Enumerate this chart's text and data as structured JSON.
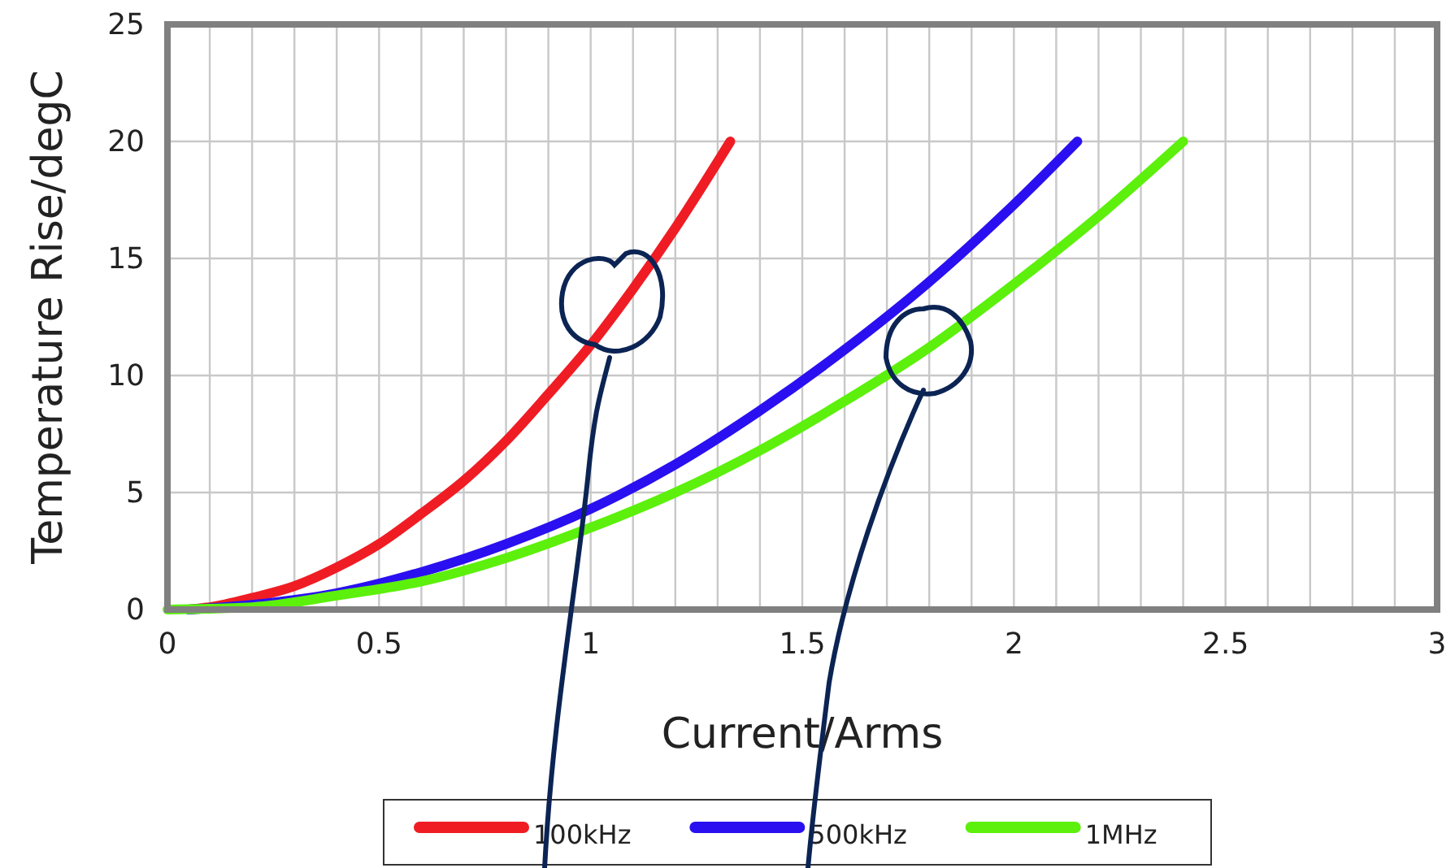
{
  "chart_data": {
    "type": "line",
    "xlabel": "Current/Arms",
    "ylabel": "Temperature Rise/degC",
    "xlim": [
      0,
      3
    ],
    "ylim": [
      0,
      25
    ],
    "xticks": [
      0,
      {
        "value": 0.1,
        "label": null
      },
      {
        "value": 0.2,
        "label": null
      },
      {
        "value": 0.3,
        "label": null
      },
      {
        "value": 0.4,
        "label": null
      },
      0.5,
      {
        "value": 0.6,
        "label": null
      },
      {
        "value": 0.7,
        "label": null
      },
      {
        "value": 0.8,
        "label": null
      },
      {
        "value": 0.9,
        "label": null
      },
      1,
      {
        "value": 1.1,
        "label": null
      },
      {
        "value": 1.2,
        "label": null
      },
      {
        "value": 1.3,
        "label": null
      },
      {
        "value": 1.4,
        "label": null
      },
      1.5,
      {
        "value": 1.6,
        "label": null
      },
      {
        "value": 1.7,
        "label": null
      },
      {
        "value": 1.8,
        "label": null
      },
      {
        "value": 1.9,
        "label": null
      },
      2,
      {
        "value": 2.1,
        "label": null
      },
      {
        "value": 2.2,
        "label": null
      },
      {
        "value": 2.3,
        "label": null
      },
      {
        "value": 2.4,
        "label": null
      },
      2.5,
      {
        "value": 2.6,
        "label": null
      },
      {
        "value": 2.7,
        "label": null
      },
      {
        "value": 2.8,
        "label": null
      },
      {
        "value": 2.9,
        "label": null
      },
      3
    ],
    "yticks": [
      0,
      5,
      10,
      15,
      20,
      25
    ],
    "grid": true,
    "legend": "bottom",
    "marker": "none",
    "line_style": "solid",
    "series": [
      {
        "name": "100kHz",
        "color": "#f01c24",
        "x": [
          0.05,
          0.1,
          0.2,
          0.3,
          0.4,
          0.5,
          0.6,
          0.7,
          0.8,
          0.9,
          1.0,
          1.1,
          1.2,
          1.33
        ],
        "values": [
          0.0,
          0.1,
          0.5,
          1.0,
          1.8,
          2.8,
          4.1,
          5.5,
          7.2,
          9.2,
          11.3,
          13.7,
          16.3,
          20
        ]
      },
      {
        "name": "500kHz",
        "color": "#2a10f0",
        "x": [
          0.05,
          0.2,
          0.4,
          0.6,
          0.8,
          1.0,
          1.2,
          1.4,
          1.6,
          1.8,
          2.0,
          2.15
        ],
        "values": [
          0.0,
          0.2,
          0.7,
          1.6,
          2.8,
          4.3,
          6.2,
          8.5,
          11.1,
          14.0,
          17.3,
          20
        ]
      },
      {
        "name": "1MHz",
        "color": "#5cf00c",
        "x": [
          0,
          0.2,
          0.4,
          0.6,
          0.8,
          1.0,
          1.2,
          1.4,
          1.6,
          1.8,
          2.0,
          2.2,
          2.4
        ],
        "values": [
          0,
          0.1,
          0.6,
          1.2,
          2.2,
          3.5,
          5.0,
          6.8,
          8.9,
          11.2,
          13.9,
          16.8,
          20
        ]
      }
    ]
  }
}
